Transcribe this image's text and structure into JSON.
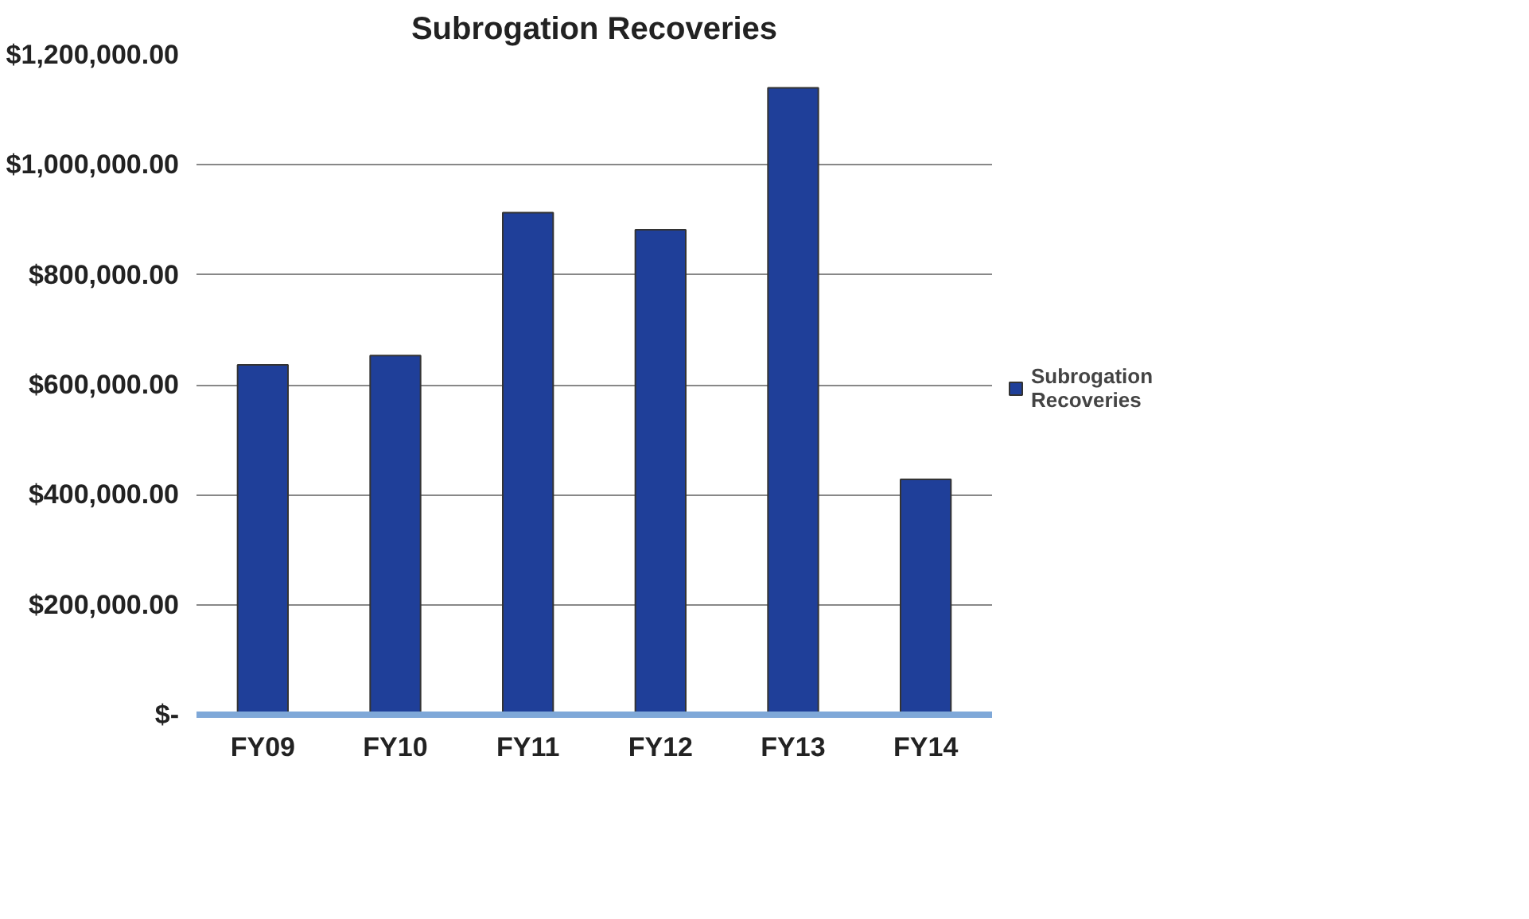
{
  "chart_data": {
    "type": "bar",
    "title": "Subrogation Recoveries",
    "categories": [
      "FY09",
      "FY10",
      "FY11",
      "FY12",
      "FY13",
      "FY14"
    ],
    "series": [
      {
        "name": "Subrogation Recoveries",
        "color": "#1f3f99",
        "values": [
          636000,
          653000,
          913000,
          882000,
          1140000,
          428000
        ]
      }
    ],
    "ylim": [
      0,
      1200000
    ],
    "yticks": [
      {
        "value": 0,
        "label": "$-"
      },
      {
        "value": 200000,
        "label": "$200,000.00"
      },
      {
        "value": 400000,
        "label": "$400,000.00"
      },
      {
        "value": 600000,
        "label": "$600,000.00"
      },
      {
        "value": 800000,
        "label": "$800,000.00"
      },
      {
        "value": 1000000,
        "label": "$1,000,000.00"
      },
      {
        "value": 1200000,
        "label": "$1,200,000.00"
      }
    ],
    "grid": "y",
    "legend": "right"
  }
}
